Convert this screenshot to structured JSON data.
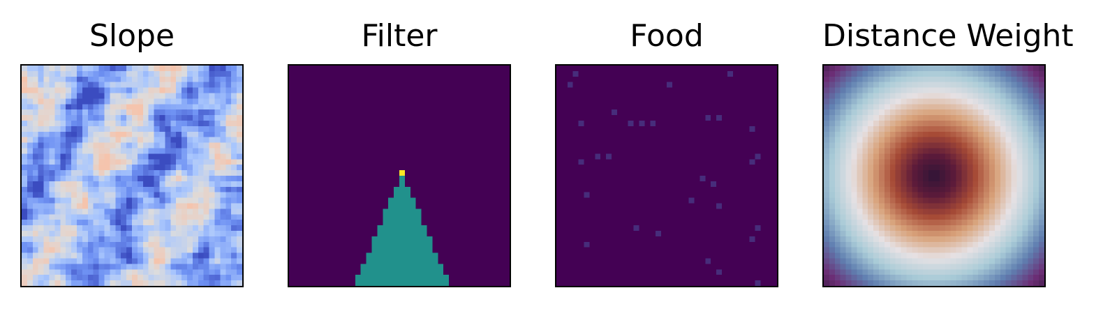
{
  "chart_data": [
    {
      "type": "heatmap",
      "title": "Slope",
      "grid_size": 40,
      "colormap": "coolwarm",
      "colormap_stops": [
        "#3b4cc0",
        "#6f92f3",
        "#aac7fd",
        "#dddcdc",
        "#f5c4ad"
      ],
      "description_values": "random terrain slope field, mostly low-to-mid values with a few warm peaks"
    },
    {
      "type": "heatmap",
      "title": "Filter",
      "grid_size": 40,
      "colormap": "viridis",
      "background_color": "#440154",
      "region_color": "#21918c",
      "peak_color": "#fde725",
      "triangle": {
        "apex_row": 20,
        "apex_col": 20,
        "base_row": 39,
        "base_half_width": 8
      }
    },
    {
      "type": "heatmap",
      "title": "Food",
      "grid_size": 40,
      "colormap": "viridis",
      "background_color": "#440154",
      "speck_color": "#472d7b",
      "specks": [
        [
          1,
          3
        ],
        [
          1,
          31
        ],
        [
          3,
          2
        ],
        [
          3,
          20
        ],
        [
          9,
          27
        ],
        [
          9,
          29
        ],
        [
          8,
          10
        ],
        [
          10,
          13
        ],
        [
          10,
          17
        ],
        [
          10,
          15
        ],
        [
          11,
          35
        ],
        [
          10,
          4
        ],
        [
          16,
          7
        ],
        [
          16,
          9
        ],
        [
          17,
          4
        ],
        [
          17,
          35
        ],
        [
          16,
          36
        ],
        [
          20,
          26
        ],
        [
          21,
          28
        ],
        [
          23,
          5
        ],
        [
          24,
          24
        ],
        [
          25,
          29
        ],
        [
          29,
          14
        ],
        [
          30,
          18
        ],
        [
          29,
          36
        ],
        [
          31,
          35
        ],
        [
          32,
          5
        ],
        [
          35,
          27
        ],
        [
          37,
          29
        ],
        [
          39,
          36
        ]
      ]
    },
    {
      "type": "heatmap",
      "title": "Distance Weight",
      "grid_size": 40,
      "colormap": "twilight_shifted",
      "colormap_stops": [
        "#2f1436",
        "#6b2d74",
        "#5f7eb0",
        "#a9cbd7",
        "#e6e1e4",
        "#d8a27a",
        "#a64a36",
        "#5c1a3a",
        "#2f1436"
      ],
      "peak_radius_cells": 0,
      "ring_radius_cells": 14
    }
  ]
}
